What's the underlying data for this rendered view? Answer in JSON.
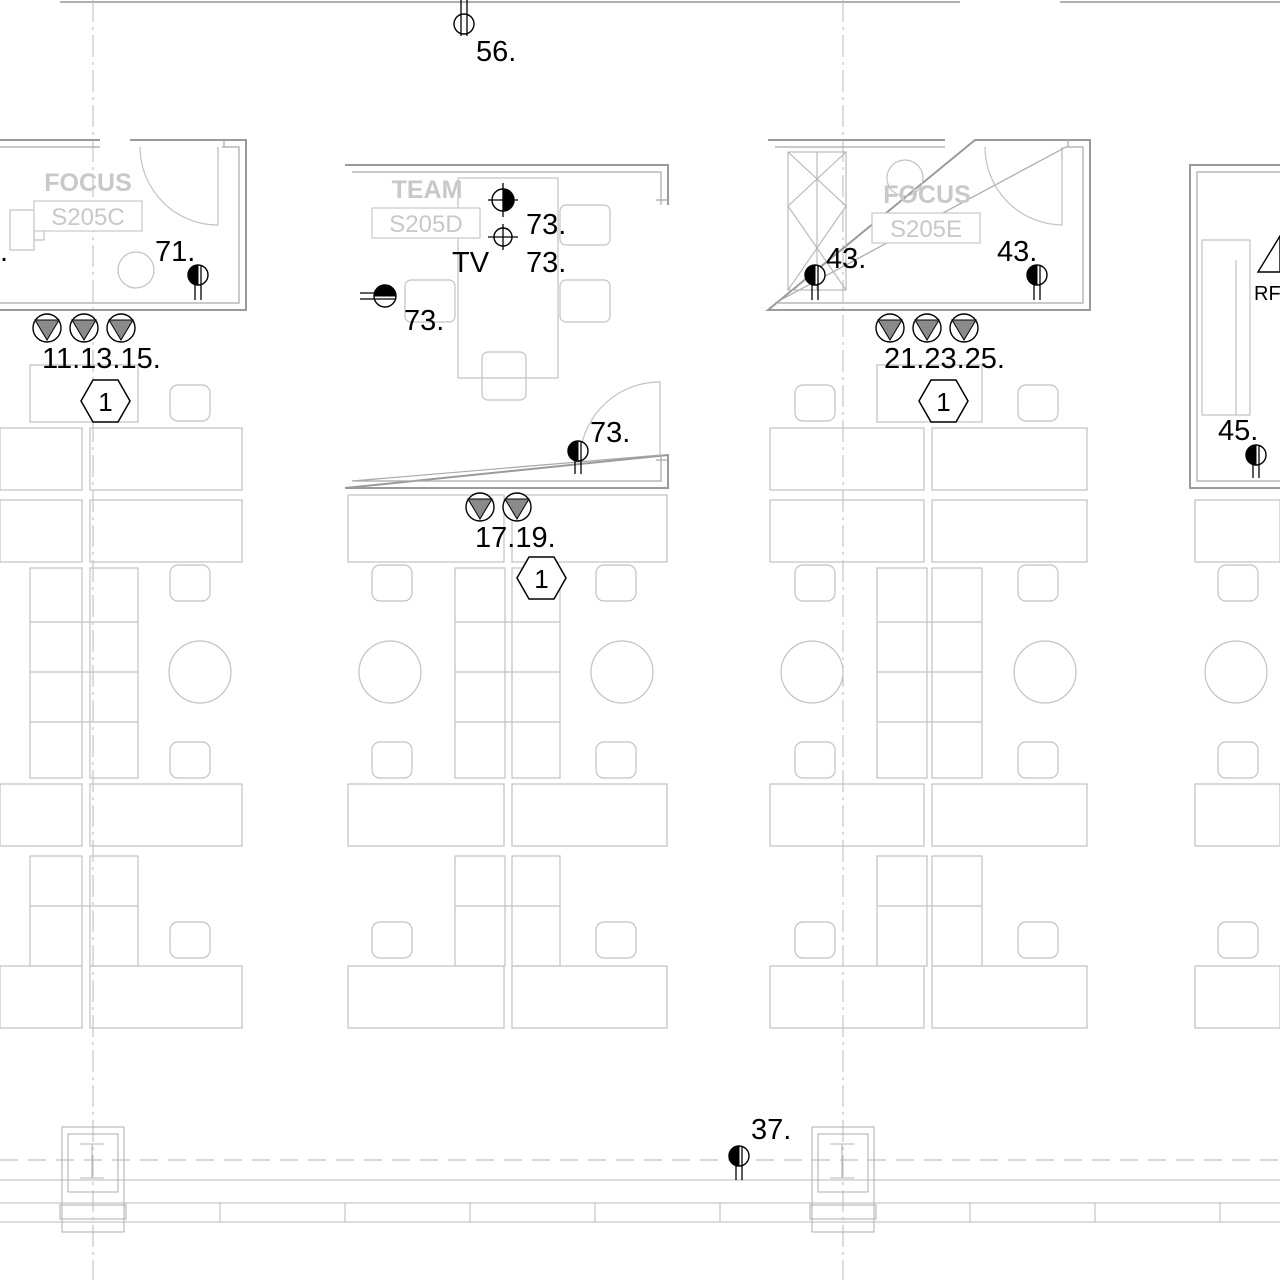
{
  "rooms": [
    {
      "type": "FOCUS",
      "number": "S205C"
    },
    {
      "type": "TEAM",
      "number": "S205D"
    },
    {
      "type": "FOCUS",
      "number": "S205E"
    }
  ],
  "device_labels": {
    "d56": "56.",
    "d71": "71.",
    "d73a": "73.",
    "d73b": "73.",
    "d73c": "73.",
    "d73d": "73.",
    "tv": "TV",
    "d43a": "43.",
    "d43b": "43.",
    "d45": "45.",
    "d37": "37.",
    "left_edge": ".",
    "rf": "RF"
  },
  "data_outlet_groups": [
    {
      "label": "11.13.15."
    },
    {
      "label": "17.19."
    },
    {
      "label": "21.23.25."
    }
  ],
  "keynote_tags": [
    "1",
    "1",
    "1"
  ]
}
